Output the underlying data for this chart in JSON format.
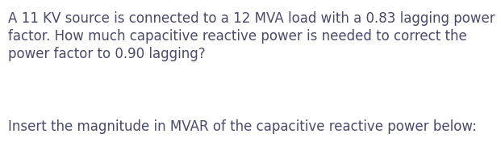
{
  "background_color": "#ffffff",
  "text_color": "#4a4a6a",
  "line1": "A 11 KV source is connected to a 12 MVA load with a 0.83 lagging power",
  "line2": "factor. How much capacitive reactive power is needed to correct the",
  "line3": "power factor to 0.90 lagging?",
  "line4": "Insert the magnitude in MVAR of the capacitive reactive power below:",
  "font_size": 12.0,
  "fig_width": 6.21,
  "fig_height": 2.03,
  "dpi": 100
}
